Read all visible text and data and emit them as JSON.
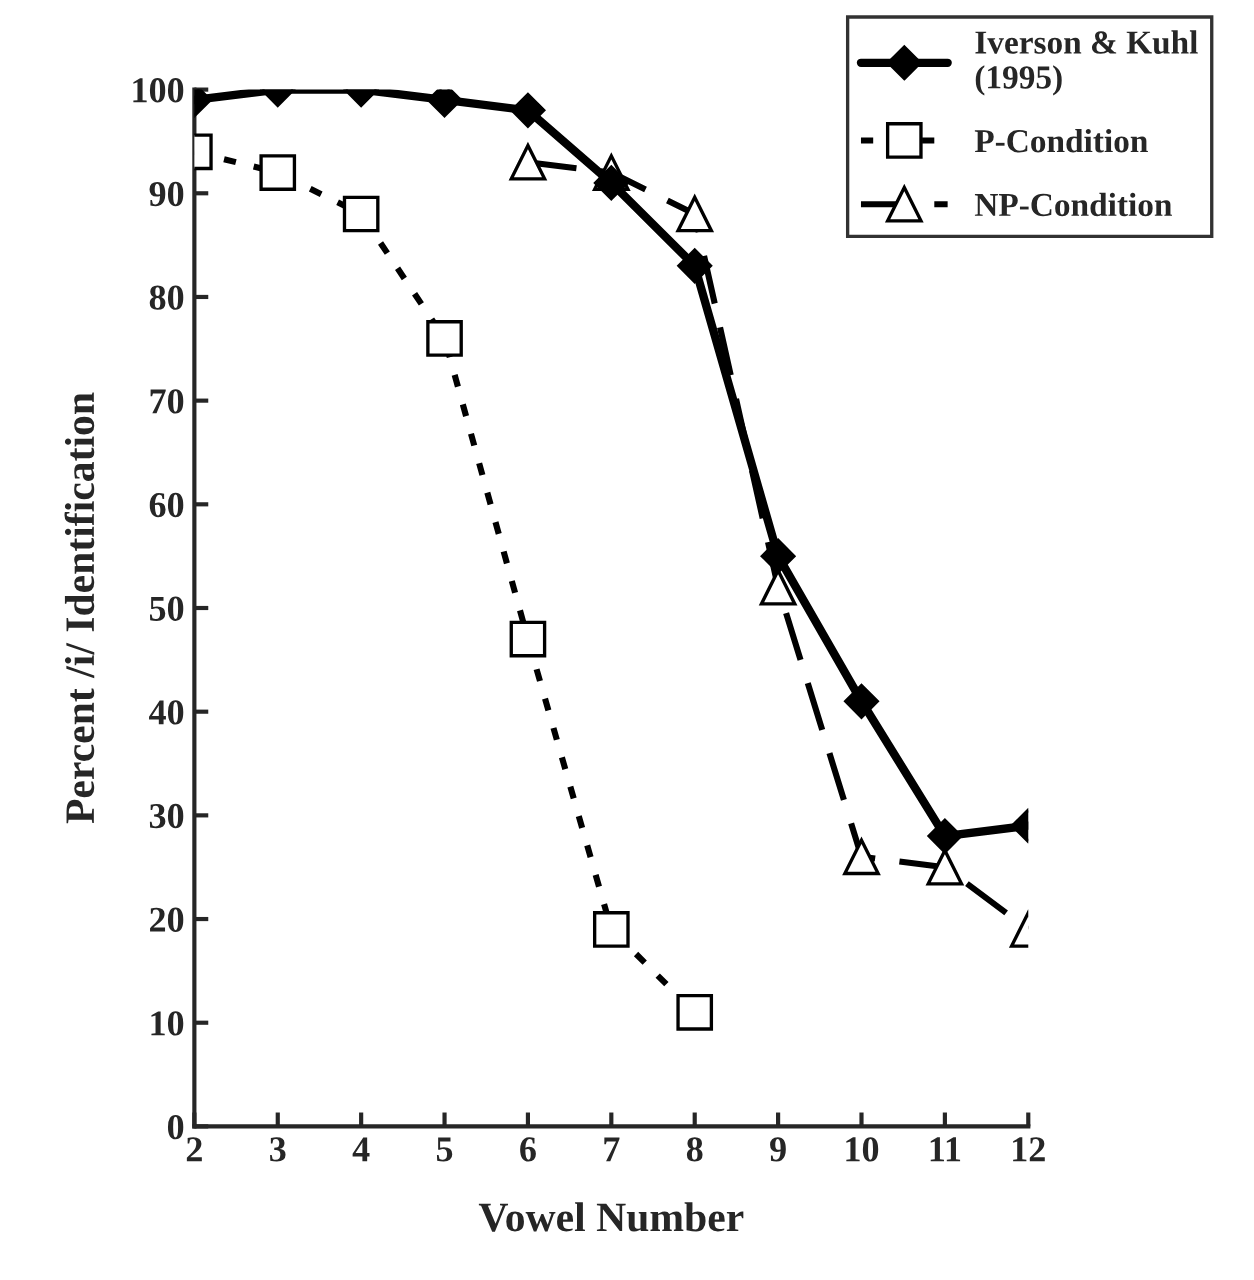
{
  "chart_data": {
    "type": "line",
    "xlabel": "Vowel Number",
    "ylabel": "Percent /i/ Identification",
    "xlim": [
      2,
      12
    ],
    "xticks": [
      2,
      3,
      4,
      5,
      6,
      7,
      8,
      9,
      10,
      11,
      12
    ],
    "ylim": [
      0,
      100
    ],
    "yticks": [
      0,
      10,
      20,
      30,
      40,
      50,
      60,
      70,
      80,
      90,
      100
    ],
    "grid": false,
    "legend": "top right",
    "series": [
      {
        "name": "Iverson & Kuhl\n(1995)",
        "color": "#000000",
        "x": [
          2,
          3,
          4,
          5,
          6,
          7,
          8,
          9,
          10,
          11,
          12
        ],
        "values": [
          99,
          100,
          100,
          99,
          98,
          91,
          83,
          55,
          41,
          28,
          29
        ],
        "marker": "diamond",
        "line_style": "solid"
      },
      {
        "name": "P-Condition",
        "color": "#000000",
        "x": [
          2,
          3,
          4,
          5,
          6,
          7,
          8
        ],
        "values": [
          94,
          92,
          88,
          76,
          47,
          19,
          11
        ],
        "marker": "square",
        "line_style": "dotted"
      },
      {
        "name": "NP-Condition",
        "color": "#000000",
        "x": [
          6,
          7,
          8,
          9,
          10,
          11,
          12
        ],
        "values": [
          93,
          92,
          88,
          52,
          26,
          25,
          19
        ],
        "marker": "triangle",
        "line_style": "dashed"
      }
    ]
  }
}
